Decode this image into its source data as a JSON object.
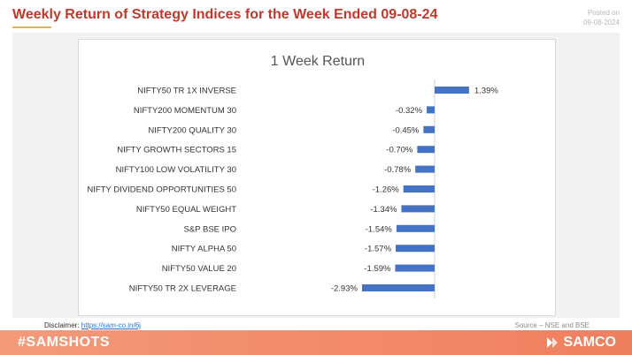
{
  "header": {
    "title": "Weekly Return of Strategy Indices for the Week Ended 09-08-24",
    "posted_label": "Posted on",
    "posted_date": "09-08-2024"
  },
  "chart_data": {
    "type": "bar",
    "orientation": "horizontal",
    "title": "1 Week Return",
    "categories": [
      "NIFTY50 TR 1X INVERSE",
      "NIFTY200 MOMENTUM 30",
      "NIFTY200 QUALITY 30",
      "NIFTY GROWTH SECTORS 15",
      "NIFTY100 LOW VOLATILITY 30",
      "NIFTY DIVIDEND OPPORTUNITIES 50",
      "NIFTY50 EQUAL WEIGHT",
      "S&P BSE IPO",
      "NIFTY ALPHA 50",
      "NIFTY50 VALUE 20",
      "NIFTY50 TR 2X LEVERAGE"
    ],
    "values": [
      1.39,
      -0.32,
      -0.45,
      -0.7,
      -0.78,
      -1.26,
      -1.34,
      -1.54,
      -1.57,
      -1.59,
      -2.93
    ],
    "value_labels": [
      "1.39%",
      "-0.32%",
      "-0.45%",
      "-0.70%",
      "-0.78%",
      "-1.26%",
      "-1.34%",
      "-1.54%",
      "-1.57%",
      "-1.59%",
      "-2.93%"
    ],
    "xlim": [
      -2.93,
      1.39
    ],
    "bar_color": "#4472c4",
    "grid": false,
    "legend": "none"
  },
  "footer": {
    "disclaimer_label": "Disclaimer:",
    "disclaimer_link": "https://sam-co.in/6j",
    "source": "Source – NSE and BSE",
    "hashtag": "#SAMSHOTS",
    "brand": "SAMCO"
  },
  "colors": {
    "title": "#c0392b",
    "footer": "#f28a6a",
    "bar": "#4472c4"
  }
}
